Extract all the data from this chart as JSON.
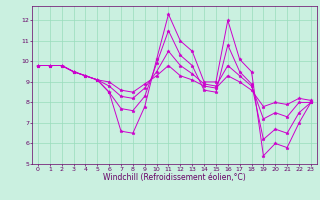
{
  "background_color": "#caf0e0",
  "grid_color": "#99ddbb",
  "line_color": "#cc00cc",
  "marker": "*",
  "xlabel": "Windchill (Refroidissement éolien,°C)",
  "xlabel_color": "#660066",
  "xlim": [
    -0.5,
    23.5
  ],
  "ylim": [
    5,
    12.7
  ],
  "yticks": [
    5,
    6,
    7,
    8,
    9,
    10,
    11,
    12
  ],
  "xticks": [
    0,
    1,
    2,
    3,
    4,
    5,
    6,
    7,
    8,
    9,
    10,
    11,
    12,
    13,
    14,
    15,
    16,
    17,
    18,
    19,
    20,
    21,
    22,
    23
  ],
  "series": [
    [
      9.8,
      9.8,
      9.8,
      9.5,
      9.3,
      9.1,
      8.5,
      6.6,
      6.5,
      7.8,
      10.1,
      12.3,
      11.0,
      10.5,
      9.0,
      9.0,
      12.0,
      10.1,
      9.5,
      5.4,
      6.0,
      5.8,
      7.0,
      8.0
    ],
    [
      9.8,
      9.8,
      9.8,
      9.5,
      9.3,
      9.1,
      8.5,
      7.7,
      7.6,
      8.3,
      9.9,
      11.5,
      10.3,
      9.8,
      8.6,
      8.5,
      10.8,
      9.5,
      8.9,
      6.2,
      6.7,
      6.5,
      7.5,
      8.0
    ],
    [
      9.8,
      9.8,
      9.8,
      9.5,
      9.3,
      9.1,
      8.8,
      8.3,
      8.2,
      8.7,
      9.5,
      10.5,
      9.8,
      9.4,
      8.9,
      8.8,
      9.8,
      9.3,
      8.8,
      7.2,
      7.5,
      7.3,
      8.0,
      8.0
    ],
    [
      9.8,
      9.8,
      9.8,
      9.5,
      9.3,
      9.1,
      9.0,
      8.6,
      8.5,
      8.9,
      9.3,
      9.8,
      9.3,
      9.1,
      8.8,
      8.7,
      9.3,
      9.0,
      8.6,
      7.8,
      8.0,
      7.9,
      8.2,
      8.1
    ]
  ],
  "tick_fontsize": 4.5,
  "xlabel_fontsize": 5.5,
  "linewidth": 0.7,
  "markersize": 2.5
}
